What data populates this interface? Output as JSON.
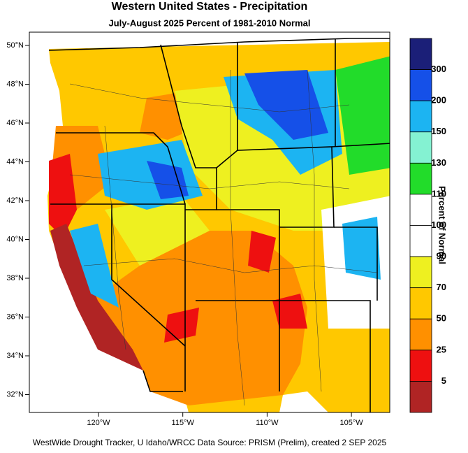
{
  "title": "Western United States - Precipitation",
  "subtitle": "July-August 2025  Percent of 1981-2010 Normal",
  "lat_labels": [
    "50°N",
    "48°N",
    "46°N",
    "44°N",
    "42°N",
    "40°N",
    "38°N",
    "36°N",
    "34°N",
    "32°N"
  ],
  "lon_labels": [
    "120°W",
    "115°W",
    "110°W",
    "105°W"
  ],
  "colorbar": {
    "title": "Percent of Normal",
    "colors": [
      "#1b1f78",
      "#1550e8",
      "#1cb4f2",
      "#84f2d2",
      "#22dc2a",
      "#ffffff",
      "#ffffff",
      "#eef020",
      "#ffc800",
      "#ff9000",
      "#ee1010",
      "#b02424"
    ],
    "labels": [
      "300",
      "200",
      "150",
      "130",
      "110",
      "100",
      "90",
      "70",
      "50",
      "25",
      "5"
    ]
  },
  "footer": "WestWide Drought Tracker, U Idaho/WRCC Data Source: PRISM (Prelim), created  2 SEP 2025"
}
